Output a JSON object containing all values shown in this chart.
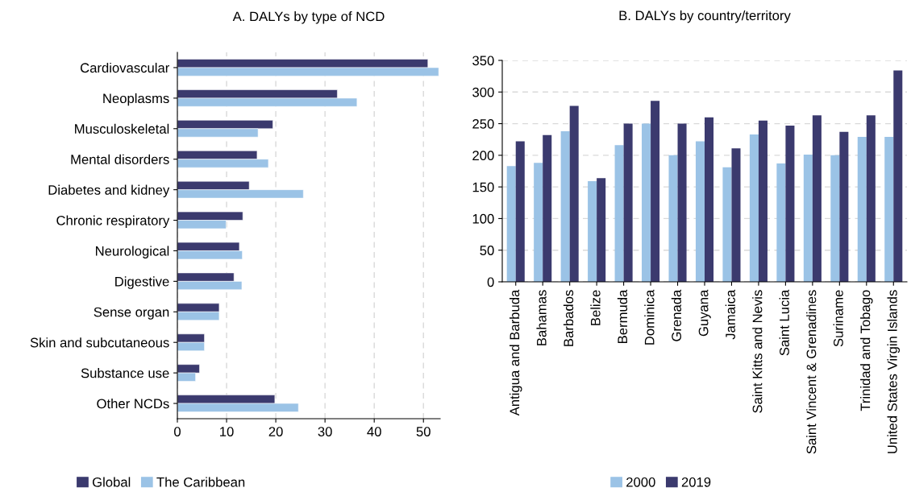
{
  "chart_data": [
    {
      "type": "bar",
      "orientation": "horizontal",
      "title": "A. DALYs by type of NCD",
      "categories": [
        "Cardiovascular",
        "Neoplasms",
        "Musculoskeletal",
        "Mental disorders",
        "Diabetes and kidney",
        "Chronic respiratory",
        "Neurological",
        "Digestive",
        "Sense organ",
        "Skin and subcutaneous",
        "Substance use",
        "Other NCDs"
      ],
      "series": [
        {
          "name": "Global",
          "color": "#3b3a6e",
          "values": [
            50.9,
            32.5,
            19.4,
            16.2,
            14.6,
            13.3,
            12.6,
            11.5,
            8.5,
            5.5,
            4.5,
            19.8
          ]
        },
        {
          "name": "The Caribbean",
          "color": "#9bc3e6",
          "values": [
            53.1,
            36.5,
            16.4,
            18.5,
            25.6,
            9.9,
            13.2,
            13.1,
            8.5,
            5.5,
            3.7,
            24.6
          ]
        }
      ],
      "xlim": [
        0,
        53.4
      ],
      "xticks": [
        0,
        10,
        20,
        30,
        40,
        50
      ],
      "grid": "x",
      "legend": "bottom left"
    },
    {
      "type": "bar",
      "title": "B. DALYs by country/territory",
      "categories": [
        "Antigua and Barbuda",
        "Bahamas",
        "Barbados",
        "Belize",
        "Bermuda",
        "Dominica",
        "Grenada",
        "Guyana",
        "Jamaica",
        "Saint Kitts and Nevis",
        "Saint Lucia",
        "Saint Vincent & Grenadines",
        "Suriname",
        "Trinidad and Tobago",
        "United States Virgin Islands"
      ],
      "series": [
        {
          "name": "2000",
          "color": "#9bc3e6",
          "values": [
            183,
            188,
            238,
            159,
            216,
            250,
            200,
            222,
            181,
            233,
            187,
            201,
            200,
            229,
            229
          ]
        },
        {
          "name": "2019",
          "color": "#3b3a6e",
          "values": [
            222,
            232,
            278,
            164,
            250,
            286,
            250,
            260,
            211,
            255,
            247,
            263,
            237,
            263,
            334
          ]
        }
      ],
      "ylim": [
        0,
        350
      ],
      "yticks": [
        0,
        50,
        100,
        150,
        200,
        250,
        300,
        350
      ],
      "grid": "y",
      "legend": "bottom"
    }
  ]
}
